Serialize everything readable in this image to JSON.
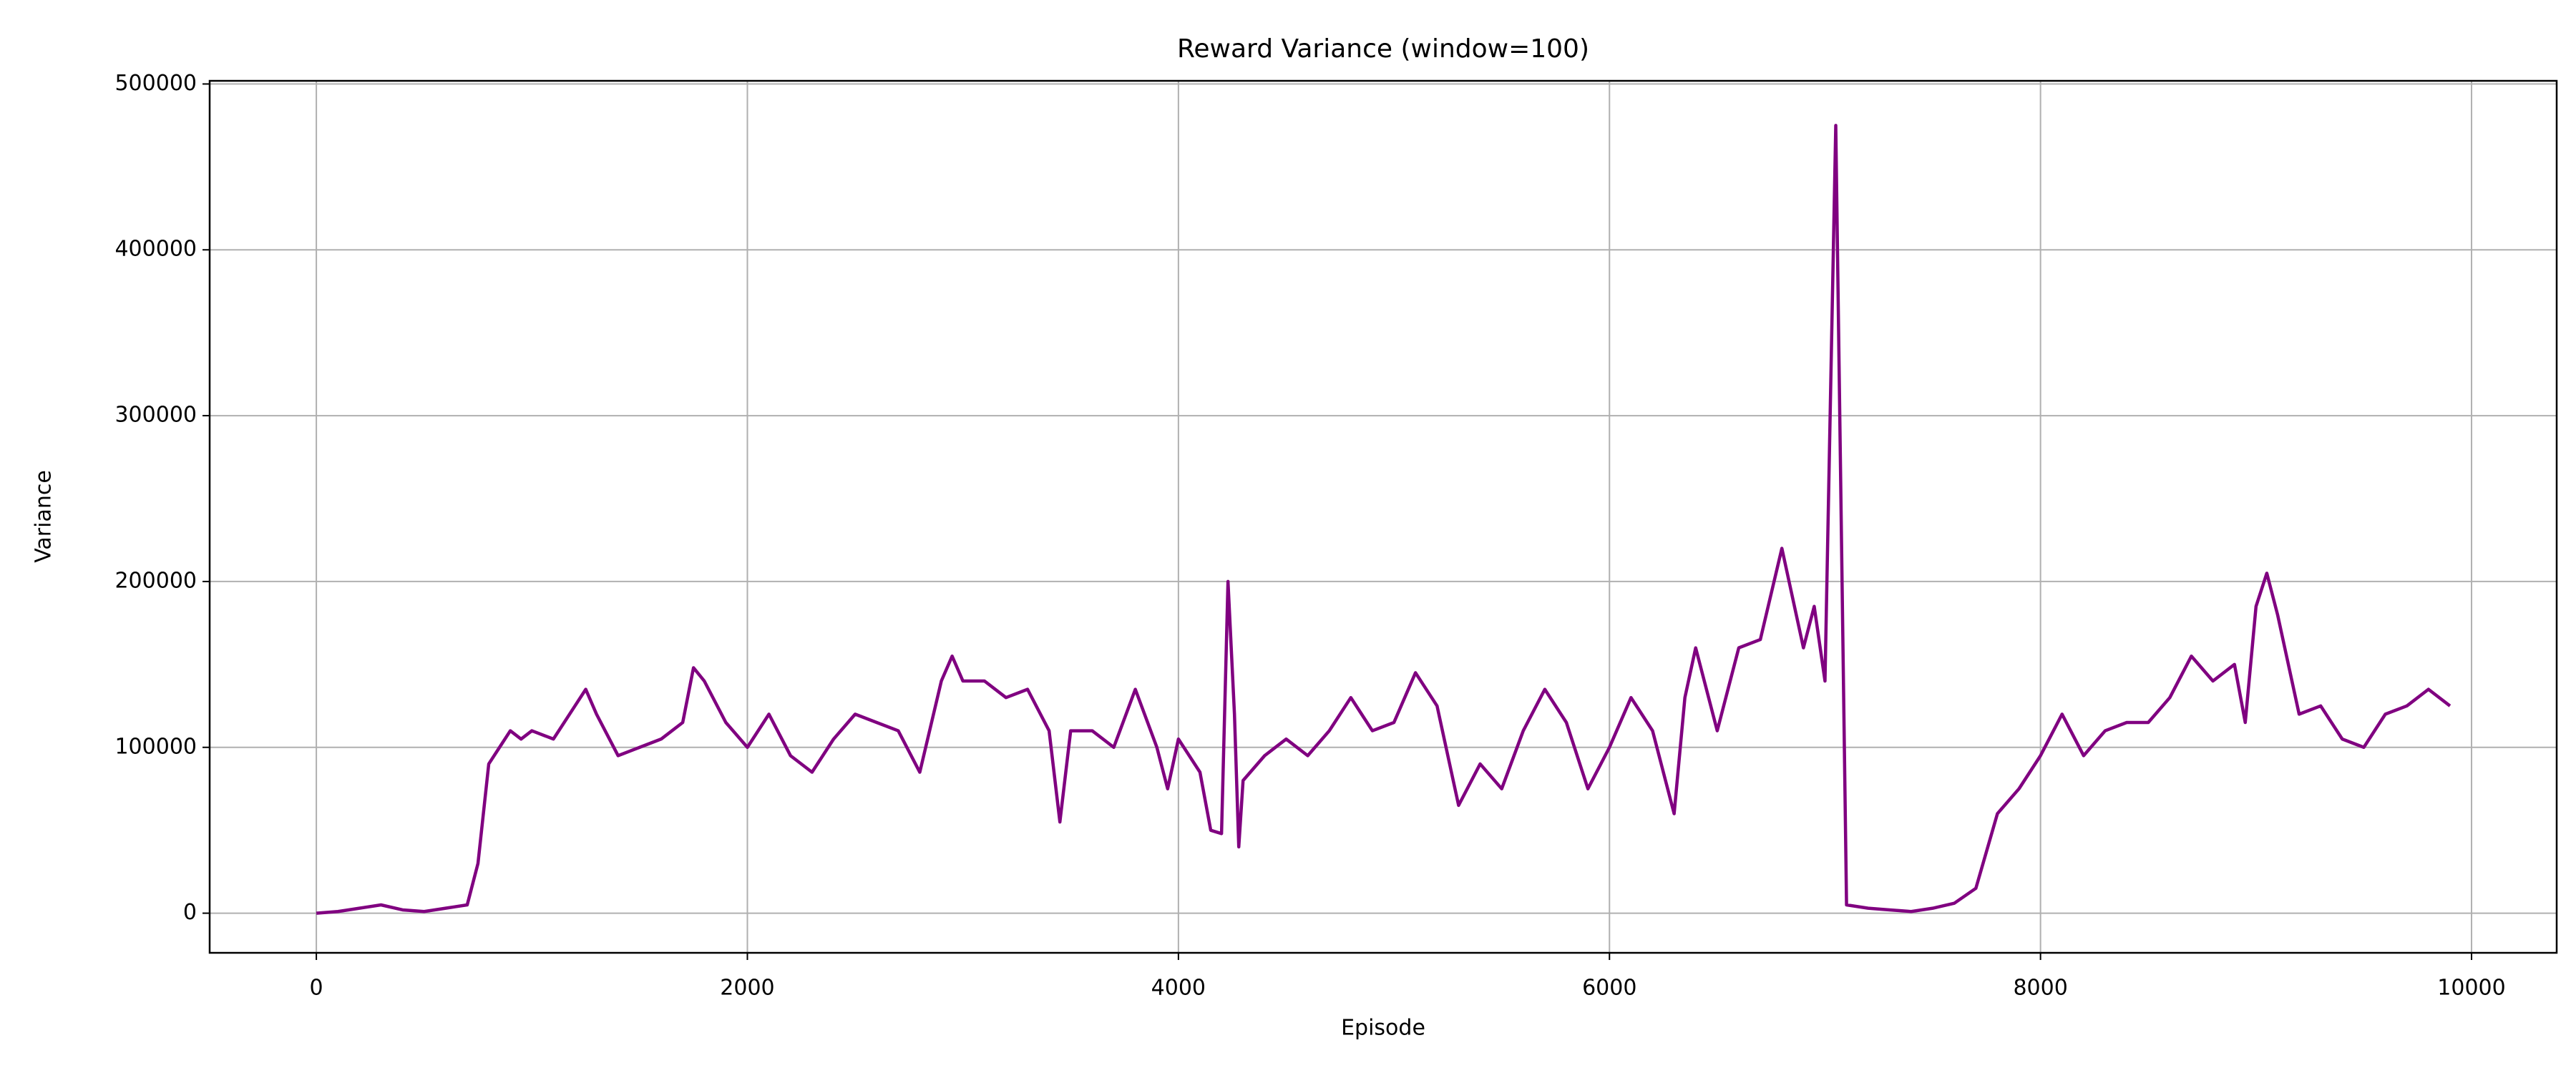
{
  "chart_data": {
    "type": "line",
    "title": "Reward Variance (window=100)",
    "x_label": "Episode",
    "y_label": "Variance",
    "x": [
      0,
      100,
      200,
      300,
      400,
      500,
      600,
      700,
      750,
      800,
      850,
      900,
      950,
      1000,
      1100,
      1200,
      1250,
      1300,
      1400,
      1500,
      1600,
      1700,
      1750,
      1800,
      1900,
      2000,
      2100,
      2200,
      2300,
      2400,
      2500,
      2600,
      2700,
      2800,
      2900,
      2950,
      3000,
      3100,
      3200,
      3300,
      3400,
      3450,
      3500,
      3600,
      3700,
      3800,
      3900,
      3950,
      4000,
      4100,
      4150,
      4200,
      4230,
      4260,
      4280,
      4300,
      4400,
      4500,
      4600,
      4700,
      4800,
      4900,
      5000,
      5100,
      5200,
      5300,
      5400,
      5500,
      5600,
      5700,
      5800,
      5900,
      6000,
      6100,
      6200,
      6300,
      6350,
      6400,
      6500,
      6600,
      6700,
      6800,
      6900,
      6950,
      7000,
      7050,
      7100,
      7200,
      7300,
      7400,
      7500,
      7600,
      7700,
      7800,
      7900,
      8000,
      8100,
      8200,
      8300,
      8400,
      8500,
      8600,
      8700,
      8800,
      8900,
      8950,
      9000,
      9050,
      9100,
      9200,
      9300,
      9400,
      9500,
      9600,
      9700,
      9800,
      9900
    ],
    "series": [
      {
        "name": "Variance",
        "color": "#800080",
        "values": [
          0,
          1000,
          3000,
          5000,
          2000,
          1000,
          3000,
          5000,
          30000,
          90000,
          100000,
          110000,
          105000,
          110000,
          105000,
          125000,
          135000,
          120000,
          95000,
          100000,
          105000,
          115000,
          148000,
          140000,
          115000,
          100000,
          120000,
          95000,
          85000,
          105000,
          120000,
          115000,
          110000,
          85000,
          140000,
          155000,
          140000,
          140000,
          130000,
          135000,
          110000,
          55000,
          110000,
          110000,
          100000,
          135000,
          100000,
          75000,
          105000,
          85000,
          50000,
          48000,
          200000,
          120000,
          40000,
          80000,
          95000,
          105000,
          95000,
          110000,
          130000,
          110000,
          115000,
          145000,
          125000,
          65000,
          90000,
          75000,
          110000,
          135000,
          115000,
          75000,
          100000,
          130000,
          110000,
          60000,
          130000,
          160000,
          110000,
          160000,
          165000,
          220000,
          160000,
          185000,
          140000,
          475000,
          5000,
          3000,
          2000,
          1000,
          3000,
          6000,
          15000,
          60000,
          75000,
          95000,
          120000,
          95000,
          110000,
          115000,
          115000,
          130000,
          155000,
          140000,
          150000,
          115000,
          185000,
          205000,
          180000,
          120000,
          125000,
          105000,
          100000,
          120000,
          125000,
          135000,
          125000
        ]
      }
    ],
    "xlim": [
      -495,
      10395
    ],
    "ylim": [
      -23900,
      501900
    ],
    "xticks": [
      0,
      2000,
      4000,
      6000,
      8000,
      10000
    ],
    "yticks": [
      0,
      100000,
      200000,
      300000,
      400000,
      500000
    ],
    "grid": true
  }
}
